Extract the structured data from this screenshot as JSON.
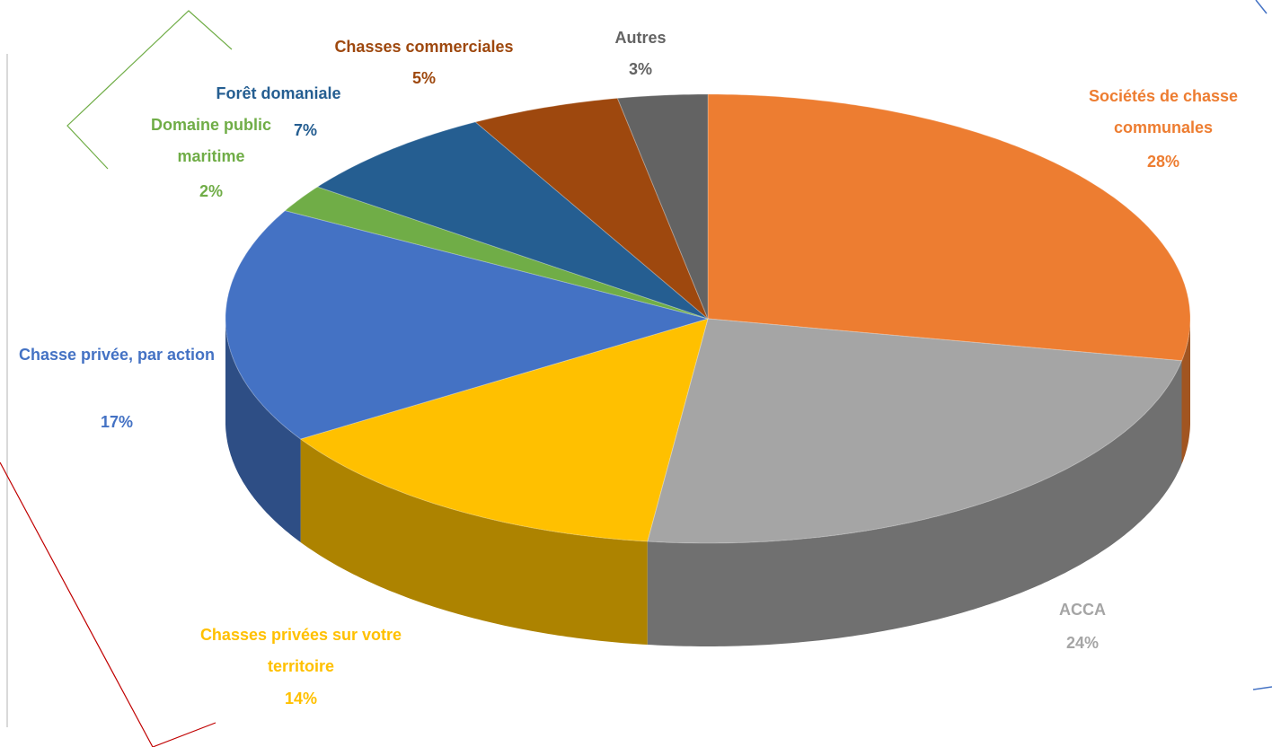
{
  "chart_data": {
    "type": "pie",
    "categories": [
      "Sociétés de chasse communales",
      "ACCA",
      "Chasses privées sur votre territoire",
      "Chasse privée, par action",
      "Domaine public maritime",
      "Forêt domaniale",
      "Chasses commerciales",
      "Autres"
    ],
    "values": [
      28,
      24,
      14,
      17,
      2,
      7,
      5,
      3
    ],
    "value_labels": [
      "28%",
      "24%",
      "14%",
      "17%",
      "2%",
      "7%",
      "5%",
      "3%"
    ],
    "colors": [
      "#ed7d31",
      "#a5a5a5",
      "#ffc000",
      "#4472c4",
      "#70ad47",
      "#255e91",
      "#9e480e",
      "#636363"
    ]
  }
}
